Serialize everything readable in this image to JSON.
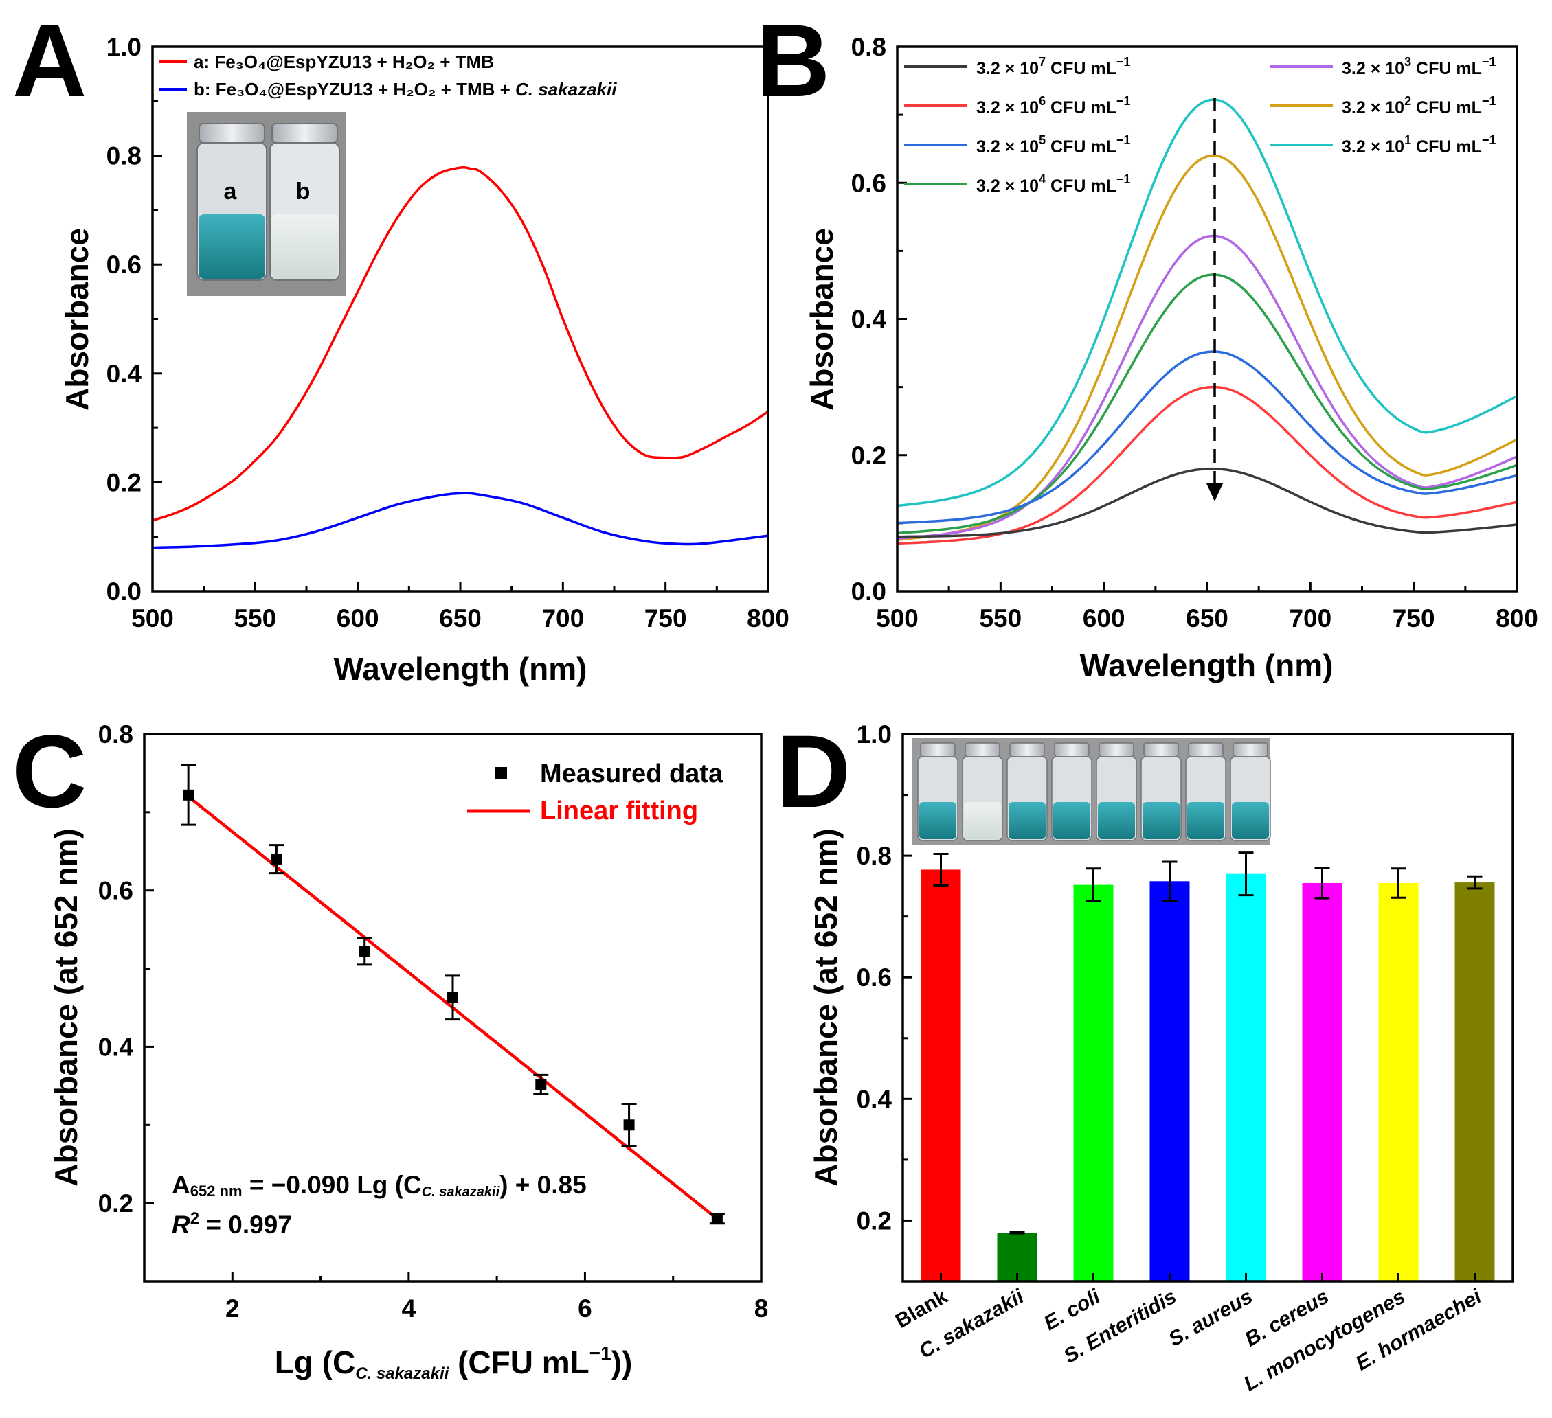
{
  "chart_data": [
    {
      "panel": "A",
      "type": "line",
      "xlabel": "Wavelength (nm)",
      "ylabel": "Absorbance",
      "xlim": [
        500,
        800
      ],
      "ylim": [
        0,
        1.0
      ],
      "xticks": [
        500,
        550,
        600,
        650,
        700,
        750,
        800
      ],
      "yticks": [
        0.0,
        0.2,
        0.4,
        0.6,
        0.8,
        1.0
      ],
      "series": [
        {
          "name": "a: Fe3O4@EspYZU13 + H2O2 + TMB",
          "color": "#ff0000",
          "x": [
            500,
            510,
            520,
            530,
            540,
            550,
            560,
            570,
            580,
            590,
            600,
            610,
            620,
            630,
            640,
            650,
            655,
            660,
            670,
            680,
            690,
            700,
            710,
            720,
            730,
            740,
            750,
            755,
            760,
            770,
            780,
            790,
            800
          ],
          "y": [
            0.13,
            0.142,
            0.158,
            0.18,
            0.205,
            0.24,
            0.28,
            0.335,
            0.4,
            0.475,
            0.55,
            0.625,
            0.69,
            0.74,
            0.768,
            0.778,
            0.776,
            0.77,
            0.735,
            0.68,
            0.6,
            0.5,
            0.41,
            0.335,
            0.28,
            0.25,
            0.245,
            0.245,
            0.248,
            0.265,
            0.285,
            0.305,
            0.33
          ]
        },
        {
          "name": "b: Fe3O4@EspYZU13 + H2O2 + TMB + C. sakazakii",
          "color": "#0000ff",
          "x": [
            500,
            520,
            540,
            560,
            580,
            600,
            620,
            640,
            652,
            660,
            680,
            700,
            720,
            740,
            755,
            770,
            800
          ],
          "y": [
            0.08,
            0.082,
            0.086,
            0.093,
            0.11,
            0.135,
            0.16,
            0.176,
            0.18,
            0.177,
            0.162,
            0.135,
            0.108,
            0.092,
            0.087,
            0.088,
            0.102
          ]
        }
      ],
      "legend": {
        "a_prefix": "a:",
        "a_text": "Fe₃O₄@EspYZU13 + H₂O₂ + TMB",
        "b_prefix": "b:",
        "b_text": "Fe₃O₄@EspYZU13 + H₂O₂ + TMB + ",
        "b_species": "C. sakazakii"
      },
      "inset_labels": [
        "a",
        "b"
      ]
    },
    {
      "panel": "B",
      "type": "line",
      "xlabel": "Wavelength (nm)",
      "ylabel": "Absorbance",
      "xlim": [
        500,
        800
      ],
      "ylim": [
        0,
        0.8
      ],
      "xticks": [
        500,
        550,
        600,
        650,
        700,
        750,
        800
      ],
      "yticks": [
        0.0,
        0.2,
        0.4,
        0.6,
        0.8
      ],
      "unit_label": "CFU mL",
      "series": [
        {
          "coef": "3.2",
          "exponent": "7",
          "color": "#3a3a3a",
          "base": 0.08,
          "peak": 0.18,
          "valley": 0.086,
          "end": 0.102
        },
        {
          "coef": "3.2",
          "exponent": "6",
          "color": "#ff3b3b",
          "base": 0.07,
          "peak": 0.3,
          "valley": 0.108,
          "end": 0.14
        },
        {
          "coef": "3.2",
          "exponent": "5",
          "color": "#2d6cdf",
          "base": 0.1,
          "peak": 0.352,
          "valley": 0.143,
          "end": 0.18
        },
        {
          "coef": "3.2",
          "exponent": "4",
          "color": "#2ca04c",
          "base": 0.085,
          "peak": 0.465,
          "valley": 0.15,
          "end": 0.2
        },
        {
          "coef": "3.2",
          "exponent": "3",
          "color": "#b267e6",
          "base": 0.077,
          "peak": 0.522,
          "valley": 0.152,
          "end": 0.215
        },
        {
          "coef": "3.2",
          "exponent": "2",
          "color": "#d4a017",
          "base": 0.075,
          "peak": 0.64,
          "valley": 0.17,
          "end": 0.245
        },
        {
          "coef": "3.2",
          "exponent": "1",
          "color": "#1fc3c3",
          "base": 0.125,
          "peak": 0.722,
          "valley": 0.233,
          "end": 0.31
        }
      ]
    },
    {
      "panel": "C",
      "type": "scatter",
      "xlabel": "Lg (C",
      "xlabel_sub": "C. sakazakii",
      "xlabel_tail": " (CFU mL",
      "xlabel_close": "))",
      "ylabel": "Absorbance (at 652 nm)",
      "xlim": [
        1,
        8
      ],
      "ylim": [
        0.1,
        0.8
      ],
      "xticks": [
        2,
        4,
        6,
        8
      ],
      "yticks": [
        0.2,
        0.4,
        0.6,
        0.8
      ],
      "points": [
        {
          "x": 1.5,
          "y": 0.722,
          "err": 0.038
        },
        {
          "x": 2.5,
          "y": 0.64,
          "err": 0.018
        },
        {
          "x": 3.5,
          "y": 0.522,
          "err": 0.017
        },
        {
          "x": 4.5,
          "y": 0.463,
          "err": 0.028
        },
        {
          "x": 5.5,
          "y": 0.352,
          "err": 0.012
        },
        {
          "x": 6.5,
          "y": 0.3,
          "err": 0.027
        },
        {
          "x": 7.5,
          "y": 0.18,
          "err": 0.006
        }
      ],
      "fit": {
        "slope": -0.09,
        "intercept": 0.855,
        "x_range": [
          1.5,
          7.5
        ],
        "color": "#ff0000"
      },
      "legend": {
        "points_label": "Measured data",
        "fit_label": "Linear fitting"
      },
      "equation": {
        "lhs": "A",
        "lhs_sub": "652 nm",
        "rhs_a": " =  −0.090 Lg (C",
        "rhs_sub": "C. sakazakii",
        "rhs_b": ")  + 0.85",
        "r2_label": "R",
        "r2_value": " = 0.997"
      }
    },
    {
      "panel": "D",
      "type": "bar",
      "ylabel": "Absorbance (at 652 nm)",
      "ylim": [
        0.1,
        1.0
      ],
      "yticks": [
        0.2,
        0.4,
        0.6,
        0.8,
        1.0
      ],
      "categories": [
        "Blank",
        "C. sakazakii",
        "E. coli",
        "S. Enteritidis",
        "S. aureus",
        "B. cereus",
        "L. monocytogenes",
        "E. hormaechei"
      ],
      "values": [
        0.777,
        0.18,
        0.752,
        0.758,
        0.77,
        0.755,
        0.755,
        0.756
      ],
      "errors": [
        0.026,
        0.001,
        0.027,
        0.032,
        0.035,
        0.025,
        0.024,
        0.01
      ],
      "colors": [
        "#ff0000",
        "#008000",
        "#00ff00",
        "#0000ff",
        "#00ffff",
        "#ff00ff",
        "#ffff00",
        "#808000"
      ]
    }
  ],
  "panel_letters": [
    "A",
    "B",
    "C",
    "D"
  ]
}
